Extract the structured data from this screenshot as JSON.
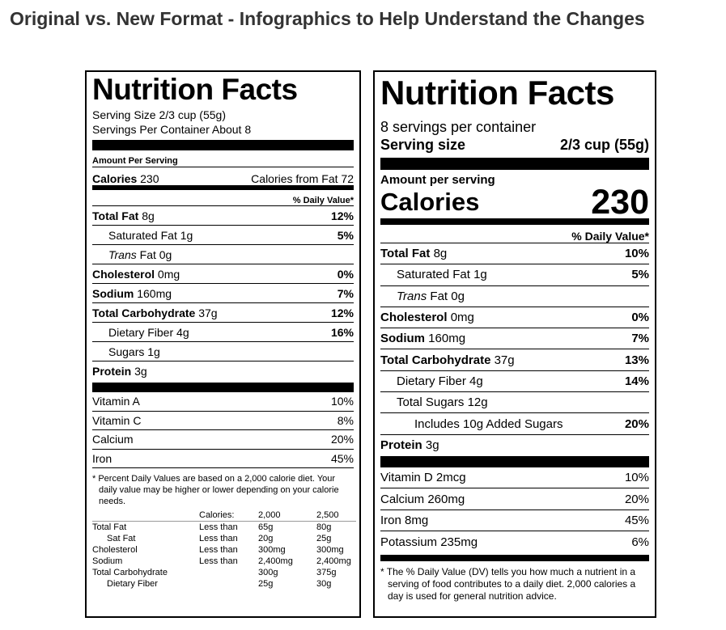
{
  "page_title": "Original vs. New Format - Infographics to Help Understand the Changes",
  "old": {
    "title": "Nutrition Facts",
    "serving_size": "Serving Size 2/3 cup (55g)",
    "servings": "Servings Per Container About 8",
    "amount_per_serving": "Amount Per Serving",
    "calories_label": "Calories",
    "calories_value": "230",
    "calories_from_fat": "Calories from Fat 72",
    "dv_header": "% Daily Value*",
    "nutrients": [
      {
        "name": "Total Fat",
        "amount": "8g",
        "dv": "12%"
      },
      {
        "name": "Saturated Fat",
        "amount": "1g",
        "dv": "5%"
      },
      {
        "name": "Trans",
        "amount": "Fat 0g",
        "dv": ""
      },
      {
        "name": "Cholesterol",
        "amount": "0mg",
        "dv": "0%"
      },
      {
        "name": "Sodium",
        "amount": "160mg",
        "dv": "7%"
      },
      {
        "name": "Total Carbohydrate",
        "amount": "37g",
        "dv": "12%"
      },
      {
        "name": "Dietary Fiber",
        "amount": "4g",
        "dv": "16%"
      },
      {
        "name": "Sugars",
        "amount": "1g",
        "dv": ""
      },
      {
        "name": "Protein",
        "amount": "3g",
        "dv": ""
      }
    ],
    "vitamins": [
      {
        "name": "Vitamin A",
        "dv": "10%"
      },
      {
        "name": "Vitamin C",
        "dv": "8%"
      },
      {
        "name": "Calcium",
        "dv": "20%"
      },
      {
        "name": "Iron",
        "dv": "45%"
      }
    ],
    "footnote": "* Percent Daily Values are based on a 2,000 calorie diet. Your daily value may be higher or lower depending on your calorie needs.",
    "table_header": [
      "",
      "Calories:",
      "2,000",
      "2,500"
    ],
    "table_rows": [
      [
        "Total Fat",
        "Less than",
        "65g",
        "80g"
      ],
      [
        "Sat Fat",
        "Less than",
        "20g",
        "25g"
      ],
      [
        "Cholesterol",
        "Less than",
        "300mg",
        "300mg"
      ],
      [
        "Sodium",
        "Less than",
        "2,400mg",
        "2,400mg"
      ],
      [
        "Total Carbohydrate",
        "",
        "300g",
        "375g"
      ],
      [
        "Dietary Fiber",
        "",
        "25g",
        "30g"
      ]
    ]
  },
  "new": {
    "title": "Nutrition Facts",
    "servings": "8 servings per container",
    "serving_size_label": "Serving size",
    "serving_size_value": "2/3 cup (55g)",
    "amount_per_serving": "Amount per serving",
    "calories_label": "Calories",
    "calories_value": "230",
    "dv_header": "% Daily Value*",
    "nutrients": [
      {
        "name": "Total Fat",
        "amount": "8g",
        "dv": "10%"
      },
      {
        "name": "Saturated Fat",
        "amount": "1g",
        "dv": "5%"
      },
      {
        "name": "Trans",
        "amount": "Fat 0g",
        "dv": ""
      },
      {
        "name": "Cholesterol",
        "amount": "0mg",
        "dv": "0%"
      },
      {
        "name": "Sodium",
        "amount": "160mg",
        "dv": "7%"
      },
      {
        "name": "Total Carbohydrate",
        "amount": "37g",
        "dv": "13%"
      },
      {
        "name": "Dietary Fiber",
        "amount": "4g",
        "dv": "14%"
      },
      {
        "name": "Total Sugars",
        "amount": "12g",
        "dv": ""
      },
      {
        "name": "Includes 10g Added Sugars",
        "amount": "",
        "dv": "20%"
      },
      {
        "name": "Protein",
        "amount": "3g",
        "dv": ""
      }
    ],
    "vitamins": [
      {
        "name": "Vitamin D 2mcg",
        "dv": "10%"
      },
      {
        "name": "Calcium 260mg",
        "dv": "20%"
      },
      {
        "name": "Iron 8mg",
        "dv": "45%"
      },
      {
        "name": "Potassium 235mg",
        "dv": "6%"
      }
    ],
    "footnote": "* The % Daily Value (DV) tells you how much a nutrient in a serving of food contributes to a daily diet. 2,000 calories a day is used for general nutrition advice."
  }
}
